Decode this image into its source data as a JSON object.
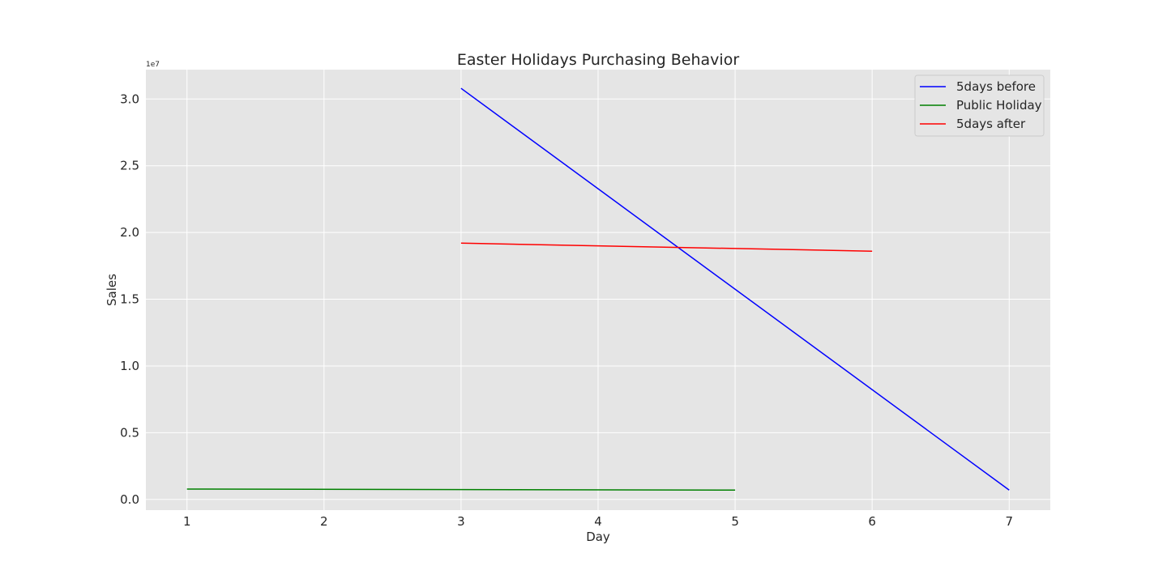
{
  "chart_data": {
    "type": "line",
    "title": "Easter Holidays Purchasing Behavior",
    "xlabel": "Day",
    "ylabel": "Sales",
    "y_offset_text": "1e7",
    "y_scale": 10000000,
    "xlim": [
      0.7,
      7.3
    ],
    "ylim": [
      -800000,
      32200000
    ],
    "x_ticks": [
      1,
      2,
      3,
      4,
      5,
      6,
      7
    ],
    "y_ticks": [
      0,
      5000000,
      10000000,
      15000000,
      20000000,
      25000000,
      30000000
    ],
    "y_tick_labels": [
      "0.0",
      "0.5",
      "1.0",
      "1.5",
      "2.0",
      "2.5",
      "3.0"
    ],
    "grid": true,
    "background": "#e5e5e5",
    "legend_position": "top-right",
    "series": [
      {
        "name": "5days before",
        "color": "#0000ff",
        "x": [
          3,
          7
        ],
        "y": [
          30800000,
          700000
        ]
      },
      {
        "name": "Public Holiday",
        "color": "#008000",
        "x": [
          1,
          5
        ],
        "y": [
          780000,
          700000
        ]
      },
      {
        "name": "5days after",
        "color": "#ff0000",
        "x": [
          3,
          6
        ],
        "y": [
          19200000,
          18600000
        ]
      }
    ]
  }
}
